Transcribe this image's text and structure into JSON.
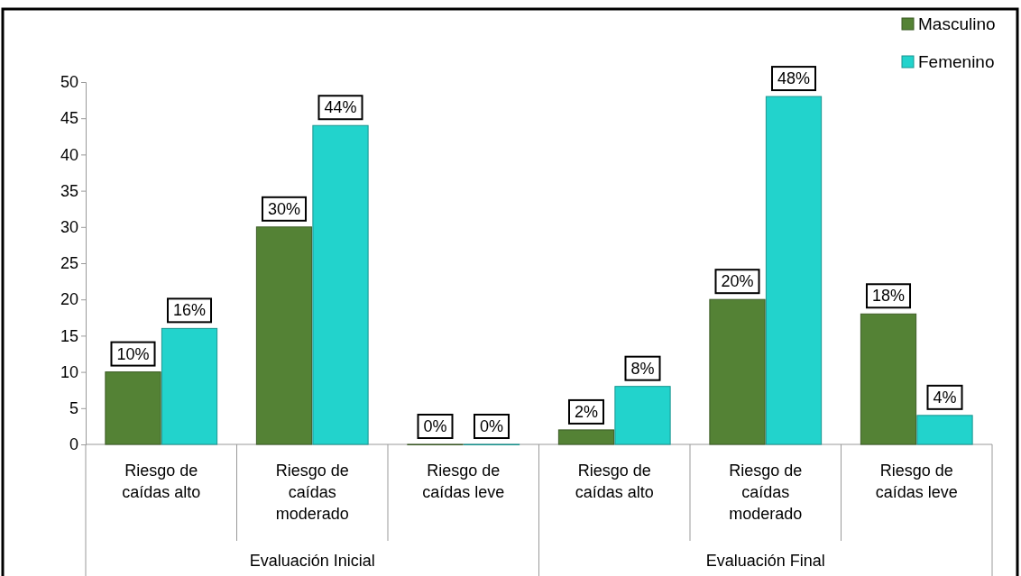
{
  "chart_data": {
    "type": "bar",
    "categories": [
      "Riesgo de caídas alto",
      "Riesgo de caídas moderado",
      "Riesgo de caídas leve",
      "Riesgo de caídas alto",
      "Riesgo de caídas moderado",
      "Riesgo de caídas leve"
    ],
    "series": [
      {
        "name": "Masculino",
        "color": "#548235",
        "values": [
          10,
          30,
          0,
          2,
          20,
          18
        ],
        "value_labels": [
          "10%",
          "30%",
          "0%",
          "2%",
          "20%",
          "18%"
        ]
      },
      {
        "name": "Femenino",
        "color": "#22d3cc",
        "values": [
          16,
          44,
          0,
          8,
          48,
          4
        ],
        "value_labels": [
          "16%",
          "44%",
          "0%",
          "8%",
          "48%",
          "4%"
        ]
      }
    ],
    "ylim": [
      0,
      50
    ],
    "yticks": [
      0,
      5,
      10,
      15,
      20,
      25,
      30,
      35,
      40,
      45,
      50
    ],
    "grid": false,
    "legend": "top right",
    "annotations": [
      "Evaluación Inicial",
      "Evaluación Final"
    ]
  }
}
